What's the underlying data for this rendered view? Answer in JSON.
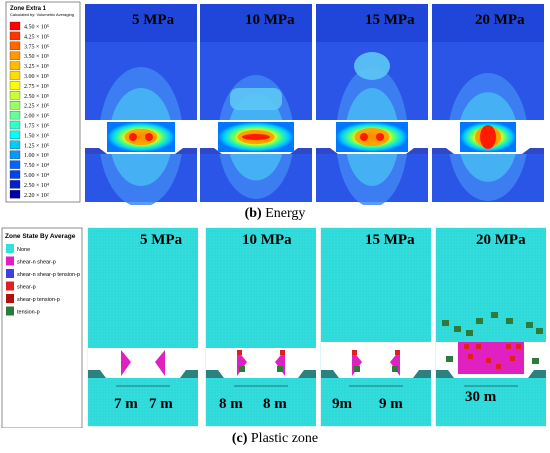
{
  "panel_b": {
    "legend_title": "Zone Extra 1",
    "legend_subtitle": "Calculated by: Volumetric Averaging",
    "legend_labels": [
      "4.50 × 10⁵",
      "4.25 × 10⁵",
      "3.75 × 10⁵",
      "3.50 × 10⁵",
      "3.25 × 10⁵",
      "3.00 × 10⁵",
      "2.75 × 10⁵",
      "2.50 × 10⁵",
      "2.25 × 10⁵",
      "2.00 × 10⁵",
      "1.75 × 10⁵",
      "1.50 × 10⁵",
      "1.25 × 10⁵",
      "1.00 × 10⁵",
      "7.50 × 10⁴",
      "5.00 × 10⁴",
      "2.50 × 10⁴",
      "2.20 × 10²"
    ],
    "legend_colors": [
      "#ff0000",
      "#ff3300",
      "#ff6600",
      "#ff9900",
      "#ffbb00",
      "#ffdd00",
      "#ffff00",
      "#ccff33",
      "#99ff66",
      "#66ff99",
      "#33ffcc",
      "#00ffff",
      "#00ccff",
      "#0099ff",
      "#0066ff",
      "#0044ee",
      "#0022cc",
      "#0000aa"
    ],
    "pressures": [
      "5 MPa",
      "10 MPa",
      "15 MPa",
      "20 MPa"
    ],
    "caption_letter": "(b)",
    "caption_text": " Energy"
  },
  "panel_c": {
    "legend_title": "Zone State By Average",
    "legend_items": [
      {
        "label": "None",
        "color": "#33e0e0"
      },
      {
        "label": "shear-n shear-p",
        "color": "#e020c0"
      },
      {
        "label": "shear-n shear-p tension-p",
        "color": "#4040e0"
      },
      {
        "label": "shear-p",
        "color": "#e02020"
      },
      {
        "label": "shear-p tension-p",
        "color": "#b01010"
      },
      {
        "label": "tension-p",
        "color": "#2e7a3a"
      }
    ],
    "pressures": [
      "5 MPa",
      "10 MPa",
      "15 MPa",
      "20 MPa"
    ],
    "widths": [
      [
        "7 m",
        "7 m"
      ],
      [
        "8 m",
        "8 m"
      ],
      [
        "9m",
        "9 m"
      ],
      [
        "30 m"
      ]
    ],
    "caption_letter": "(c)",
    "caption_text": " Plastic zone"
  }
}
